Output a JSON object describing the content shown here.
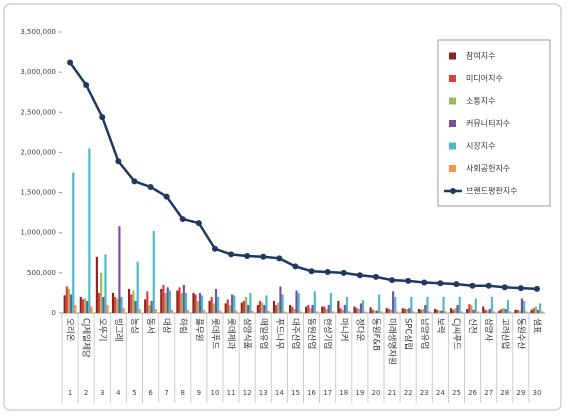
{
  "chart_data": {
    "type": "bar",
    "categories": [
      "오리온",
      "CJ제일제당",
      "오뚜기",
      "빙그레",
      "농심",
      "동서",
      "대상",
      "하림",
      "풀무원",
      "롯데푸드",
      "롯데제과",
      "삼양식품",
      "매일유업",
      "푸드나무",
      "대주산업",
      "동원산업",
      "한성기업",
      "마니커",
      "정다운",
      "동원F&B",
      "미래생명자원",
      "SPC삼립",
      "남양유업",
      "보락",
      "CJ씨푸드",
      "신전",
      "삼양사",
      "고려산업",
      "동원수산",
      "샘표"
    ],
    "category_numbers": [
      1,
      2,
      3,
      4,
      5,
      6,
      7,
      8,
      9,
      10,
      11,
      12,
      13,
      14,
      15,
      16,
      17,
      18,
      19,
      20,
      21,
      22,
      23,
      24,
      25,
      26,
      27,
      28,
      29,
      30
    ],
    "ylim": [
      0,
      3500000
    ],
    "yticks": [
      0,
      {
        "value": 500000,
        "label": "500,000"
      },
      {
        "value": 1000000,
        "label": "1,000,000"
      },
      {
        "value": 1500000,
        "label": "1,500,000"
      },
      {
        "value": 2000000,
        "label": "2,000,000"
      },
      {
        "value": 2500000,
        "label": "2,500,000"
      },
      {
        "value": 3000000,
        "label": "3,000,000"
      },
      {
        "value": 3500000,
        "label": "3,500,000"
      }
    ],
    "series": [
      {
        "name": "참여지수",
        "color": "#8b2323",
        "values": [
          220000,
          200000,
          700000,
          250000,
          300000,
          170000,
          300000,
          280000,
          250000,
          150000,
          120000,
          130000,
          100000,
          150000,
          100000,
          80000,
          80000,
          150000,
          80000,
          70000,
          60000,
          60000,
          50000,
          50000,
          60000,
          50000,
          80000,
          30000,
          40000,
          40000
        ]
      },
      {
        "name": "미디어지수",
        "color": "#e03c3c",
        "values": [
          330000,
          170000,
          250000,
          200000,
          230000,
          270000,
          350000,
          320000,
          230000,
          200000,
          170000,
          150000,
          150000,
          100000,
          80000,
          100000,
          80000,
          60000,
          60000,
          40000,
          50000,
          50000,
          40000,
          40000,
          40000,
          110000,
          40000,
          50000,
          40000,
          60000
        ]
      },
      {
        "name": "소통지수",
        "color": "#9bbb59",
        "values": [
          300000,
          180000,
          500000,
          180000,
          280000,
          100000,
          250000,
          250000,
          150000,
          120000,
          100000,
          200000,
          130000,
          130000,
          50000,
          60000,
          50000,
          40000,
          50000,
          30000,
          40000,
          50000,
          50000,
          30000,
          60000,
          100000,
          30000,
          60000,
          30000,
          80000
        ]
      },
      {
        "name": "커뮤니티지수",
        "color": "#7a4f9e",
        "values": [
          230000,
          150000,
          200000,
          1080000,
          150000,
          150000,
          320000,
          350000,
          250000,
          300000,
          230000,
          100000,
          100000,
          330000,
          280000,
          100000,
          100000,
          100000,
          120000,
          30000,
          270000,
          60000,
          100000,
          30000,
          100000,
          40000,
          50000,
          50000,
          180000,
          40000
        ]
      },
      {
        "name": "시장지수",
        "color": "#4bb8c8",
        "values": [
          1750000,
          2050000,
          730000,
          200000,
          640000,
          1020000,
          280000,
          250000,
          220000,
          200000,
          220000,
          250000,
          220000,
          230000,
          250000,
          270000,
          250000,
          200000,
          160000,
          230000,
          200000,
          200000,
          200000,
          200000,
          200000,
          180000,
          200000,
          160000,
          150000,
          120000
        ]
      },
      {
        "name": "사회공헌지수",
        "color": "#f79646",
        "values": [
          100000,
          80000,
          100000,
          60000,
          50000,
          50000,
          40000,
          40000,
          40000,
          30000,
          30000,
          30000,
          30000,
          20000,
          20000,
          20000,
          20000,
          20000,
          20000,
          20000,
          20000,
          20000,
          20000,
          20000,
          20000,
          20000,
          20000,
          20000,
          20000,
          20000
        ]
      },
      {
        "name": "브랜드평판지수",
        "color": "#1f3864",
        "type": "line",
        "values": [
          3120000,
          2840000,
          2440000,
          1890000,
          1640000,
          1570000,
          1450000,
          1170000,
          1120000,
          800000,
          730000,
          710000,
          700000,
          680000,
          580000,
          520000,
          510000,
          500000,
          470000,
          450000,
          410000,
          400000,
          380000,
          370000,
          360000,
          340000,
          340000,
          320000,
          310000,
          300000
        ]
      }
    ],
    "grid": false,
    "legend": "upper right"
  }
}
